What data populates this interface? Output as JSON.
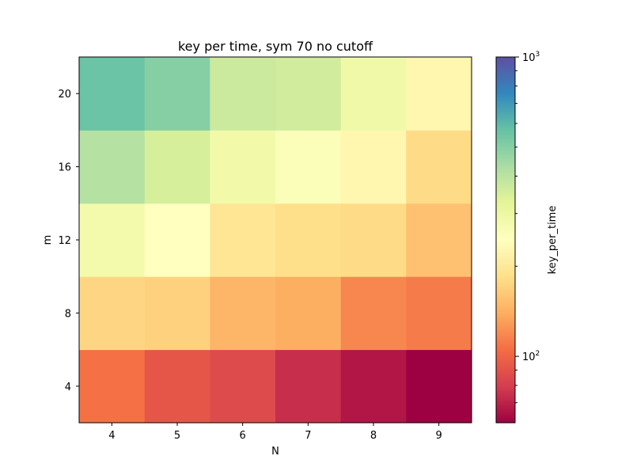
{
  "chart_data": {
    "type": "heatmap",
    "title": "key per time, sym 70 no cutoff",
    "xlabel": "N",
    "ylabel": "m",
    "x_categories": [
      4,
      5,
      6,
      7,
      8,
      9
    ],
    "y_categories": [
      4,
      8,
      12,
      16,
      20
    ],
    "values": [
      [
        107,
        92,
        86,
        74,
        66,
        60
      ],
      [
        175,
        170,
        145,
        140,
        118,
        112
      ],
      [
        280,
        245,
        195,
        185,
        180,
        155
      ],
      [
        410,
        350,
        285,
        255,
        225,
        180
      ],
      [
        560,
        500,
        370,
        360,
        290,
        225
      ]
    ],
    "value_note": "rows correspond to y_categories (m), columns to x_categories (N); key_per_time values estimated from colormap",
    "colorbar": {
      "label": "key_per_time",
      "scale": "log",
      "range": [
        60,
        1000
      ],
      "tick_labels": [
        {
          "base": "10",
          "exp": "2",
          "value": 100
        },
        {
          "base": "10",
          "exp": "3",
          "value": 1000
        }
      ],
      "colormap": "Spectral"
    }
  }
}
